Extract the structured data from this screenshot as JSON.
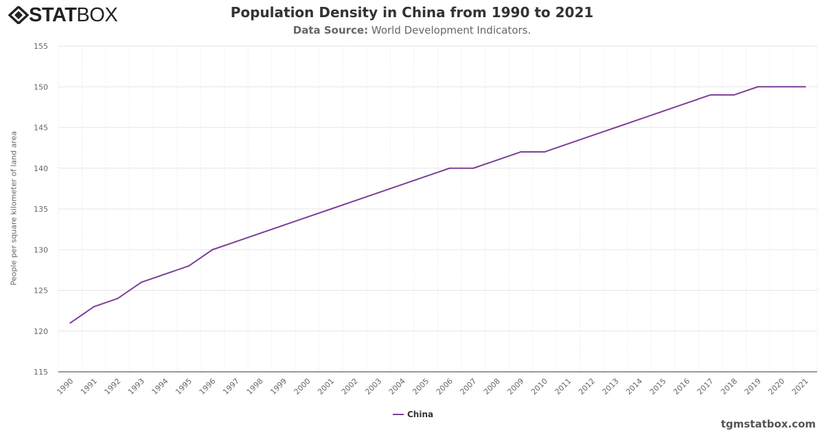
{
  "logo": {
    "bold": "STAT",
    "light": "BOX"
  },
  "watermark": "tgmstatbox.com",
  "chart_data": {
    "type": "line",
    "title": "Population Density in China from 1990 to 2021",
    "subtitle_label": "Data Source:",
    "subtitle_value": "World Development Indicators.",
    "ylabel": "People per square kilometer of land area",
    "xlabel": "",
    "ylim": [
      115,
      155
    ],
    "yticks": [
      115,
      120,
      125,
      130,
      135,
      140,
      145,
      150,
      155
    ],
    "grid": true,
    "legend_position": "bottom",
    "categories": [
      "1990",
      "1991",
      "1992",
      "1993",
      "1994",
      "1995",
      "1996",
      "1997",
      "1998",
      "1999",
      "2000",
      "2001",
      "2002",
      "2003",
      "2004",
      "2005",
      "2006",
      "2007",
      "2008",
      "2009",
      "2010",
      "2011",
      "2012",
      "2013",
      "2014",
      "2015",
      "2016",
      "2017",
      "2018",
      "2019",
      "2020",
      "2021"
    ],
    "series": [
      {
        "name": "China",
        "color": "#7b3f98",
        "values": [
          121,
          123,
          124,
          126,
          127,
          128,
          130,
          131,
          132,
          133,
          134,
          135,
          136,
          137,
          138,
          139,
          140,
          140,
          141,
          142,
          142,
          143,
          144,
          145,
          146,
          147,
          148,
          149,
          149,
          150,
          150,
          150
        ]
      }
    ]
  }
}
